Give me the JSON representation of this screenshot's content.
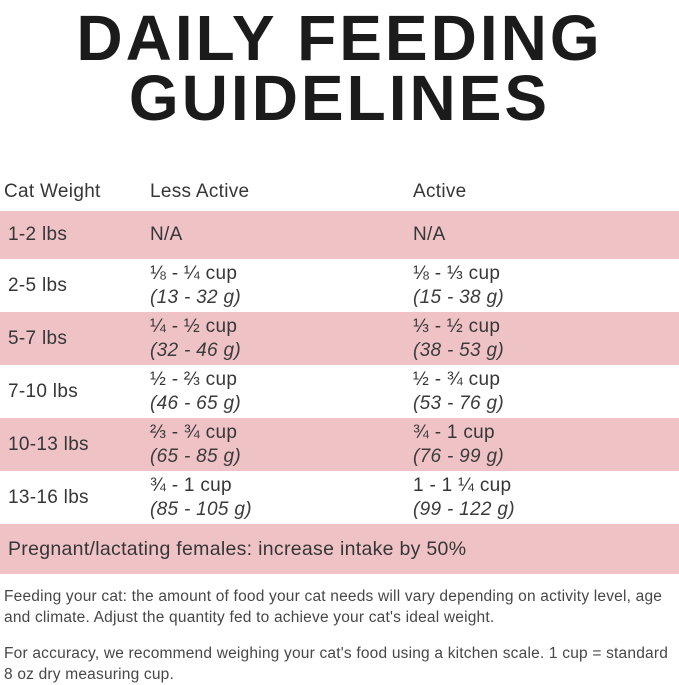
{
  "title": {
    "line1": "DAILY FEEDING",
    "line2": "GUIDELINES"
  },
  "colors": {
    "row_pink": "#efc3c6",
    "title_text": "#1b1b1b",
    "body_text": "#363636"
  },
  "table": {
    "headers": {
      "col1": "Cat Weight",
      "col2": "Less Active",
      "col3": "Active"
    },
    "rows": [
      {
        "weight": "1-2 lbs",
        "less_active_cups": "N/A",
        "less_active_grams": "",
        "active_cups": "N/A",
        "active_grams": ""
      },
      {
        "weight": "2-5 lbs",
        "less_active_cups": "⅛ - ¼ cup",
        "less_active_grams": "(13 - 32 g)",
        "active_cups": "⅛ - ⅓ cup",
        "active_grams": "(15 - 38 g)"
      },
      {
        "weight": "5-7 lbs",
        "less_active_cups": "¼ - ½ cup",
        "less_active_grams": "(32 - 46 g)",
        "active_cups": "⅓ - ½ cup",
        "active_grams": "(38 - 53 g)"
      },
      {
        "weight": "7-10 lbs",
        "less_active_cups": "½ - ⅔ cup",
        "less_active_grams": "(46 - 65 g)",
        "active_cups": "½ - ¾ cup",
        "active_grams": "(53 - 76 g)"
      },
      {
        "weight": "10-13 lbs",
        "less_active_cups": "⅔ - ¾ cup",
        "less_active_grams": "(65 - 85 g)",
        "active_cups": "¾ - 1 cup",
        "active_grams": "(76 - 99 g)"
      },
      {
        "weight": "13-16 lbs",
        "less_active_cups": "¾ - 1 cup",
        "less_active_grams": "(85 - 105 g)",
        "active_cups": "1 - 1 ¼ cup",
        "active_grams": "(99 - 122 g)"
      }
    ],
    "note_row": "Pregnant/lactating females: increase intake by 50%"
  },
  "footnotes": {
    "para1": "Feeding your cat: the amount of food your cat needs will vary depending on activity level, age and climate. Adjust the quantity fed to achieve your cat's ideal weight.",
    "para2": "For accuracy, we recommend weighing your cat's food using a kitchen scale. 1 cup = standard 8 oz dry measuring cup."
  }
}
